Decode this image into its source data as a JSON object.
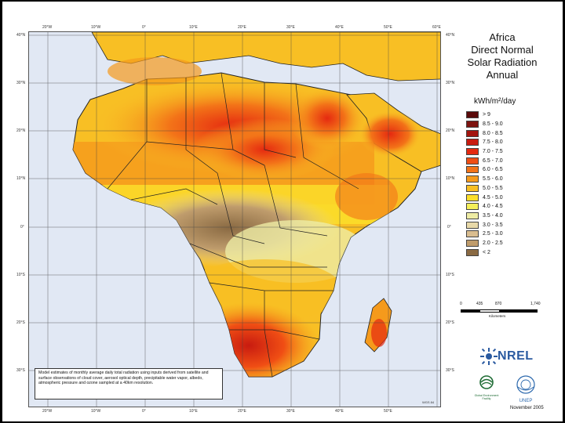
{
  "title": {
    "lines": [
      "Africa",
      "Direct Normal",
      "Solar Radiation",
      "Annual"
    ]
  },
  "legend": {
    "unit": "kWh/m²/day",
    "classes": [
      {
        "label": "> 9",
        "color": "#5a0a0a"
      },
      {
        "label": "8.5 - 9.0",
        "color": "#7d1410"
      },
      {
        "label": "8.0 - 8.5",
        "color": "#a3150f"
      },
      {
        "label": "7.5 - 8.0",
        "color": "#c81b10"
      },
      {
        "label": "7.0 - 7.5",
        "color": "#e52a10"
      },
      {
        "label": "6.5 - 7.0",
        "color": "#f04e14"
      },
      {
        "label": "6.0 - 6.5",
        "color": "#f37318"
      },
      {
        "label": "5.5 - 6.0",
        "color": "#f59a1c"
      },
      {
        "label": "5.0 - 5.5",
        "color": "#f8bf24"
      },
      {
        "label": "4.5 - 5.0",
        "color": "#fbde2a"
      },
      {
        "label": "4.0 - 4.5",
        "color": "#f4ef5a"
      },
      {
        "label": "3.5 - 4.0",
        "color": "#eeeca5"
      },
      {
        "label": "3.0 - 3.5",
        "color": "#e8d9a8"
      },
      {
        "label": "2.5 - 3.0",
        "color": "#d9bd8f"
      },
      {
        "label": "2.0 - 2.5",
        "color": "#bf9c6c"
      },
      {
        "label": "< 2",
        "color": "#8a6a43"
      }
    ]
  },
  "map": {
    "longitude_labels": [
      "20°W",
      "10°W",
      "0°",
      "10°E",
      "20°E",
      "30°E",
      "40°E",
      "50°E",
      "60°E"
    ],
    "latitude_labels": [
      "40°N",
      "30°N",
      "20°N",
      "10°N",
      "0°",
      "10°S",
      "20°S",
      "30°S"
    ],
    "ocean_color": "#e1e8f4",
    "land_low_color": "#fbde2a",
    "border_color": "#222222"
  },
  "scale_bar": {
    "labels": [
      "0",
      "435",
      "870",
      "1,740"
    ],
    "unit": "Kilometers"
  },
  "note": "Model estimates of monthly average daily total radiation using inputs derived from satellite and surface observations of cloud cover, aerosol optical depth, precipitable water vapor, albedo, atmospheric pressure and ozone sampled at a 40km resolution.",
  "datum": "WGS 84",
  "logos": {
    "nrel": "NREL",
    "gef": "Global Environment Facility",
    "unep": "UNEP"
  },
  "date": "November 2005"
}
